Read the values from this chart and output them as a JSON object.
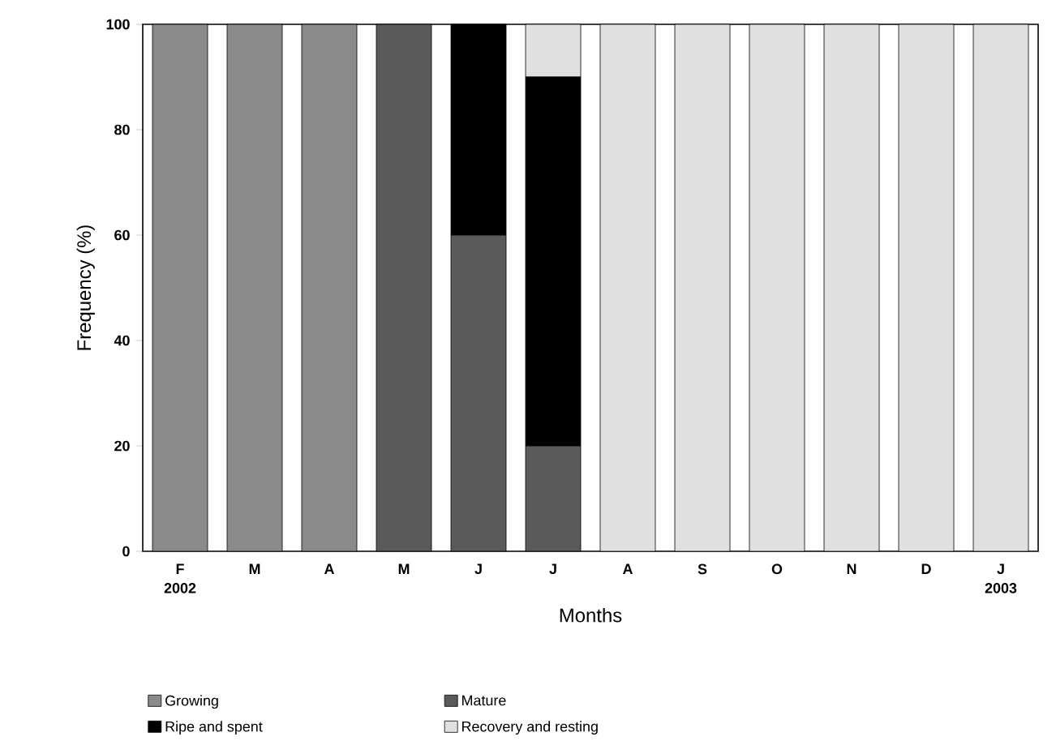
{
  "chart_data": {
    "type": "bar",
    "stacked": true,
    "xlabel": "Months",
    "ylabel": "Frequency (%)",
    "categories": [
      "F",
      "M",
      "A",
      "M",
      "J",
      "J",
      "A",
      "S",
      "O",
      "N",
      "D",
      "J"
    ],
    "annotations": [
      "2002",
      "2003"
    ],
    "ylim": [
      0,
      100
    ],
    "yticks": [
      0,
      20,
      40,
      60,
      80,
      100
    ],
    "grid": false,
    "legend": "bottom",
    "series": [
      {
        "name": "Growing",
        "color": "#8a8a8a",
        "values": [
          100,
          100,
          100,
          0,
          0,
          0,
          0,
          0,
          0,
          0,
          0,
          0
        ]
      },
      {
        "name": "Mature",
        "color": "#5a5a5a",
        "values": [
          0,
          0,
          0,
          100,
          60,
          20,
          0,
          0,
          0,
          0,
          0,
          0
        ]
      },
      {
        "name": "Ripe and spent",
        "color": "#000000",
        "values": [
          0,
          0,
          0,
          0,
          40,
          70,
          0,
          0,
          0,
          0,
          0,
          0
        ]
      },
      {
        "name": "Recovery and resting",
        "color": "#e0e0e0",
        "values": [
          0,
          0,
          0,
          0,
          0,
          10,
          100,
          100,
          100,
          100,
          100,
          100
        ]
      }
    ]
  }
}
